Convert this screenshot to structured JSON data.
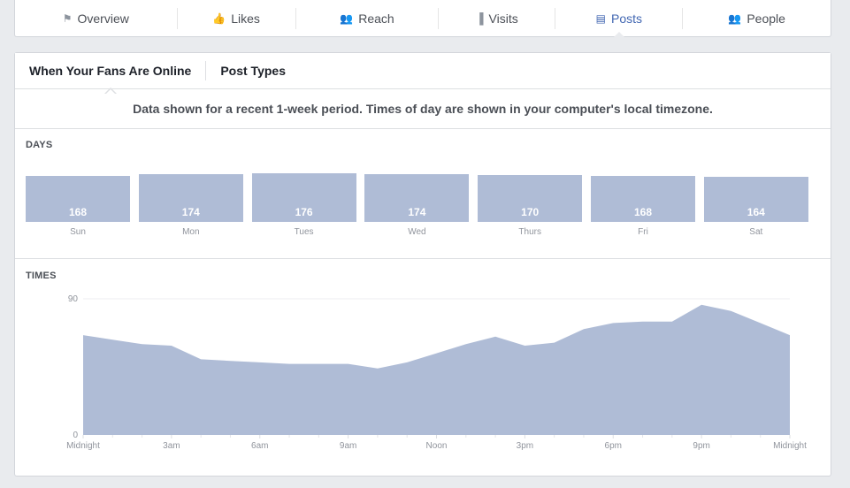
{
  "nav": {
    "tabs": [
      {
        "label": "Overview",
        "icon": "flag-icon",
        "glyph": "⚑"
      },
      {
        "label": "Likes",
        "icon": "thumbs-up-icon",
        "glyph": "👍"
      },
      {
        "label": "Reach",
        "icon": "reach-icon",
        "glyph": "👥"
      },
      {
        "label": "Visits",
        "icon": "bar-chart-icon",
        "glyph": "▐"
      },
      {
        "label": "Posts",
        "icon": "posts-icon",
        "glyph": "▤"
      },
      {
        "label": "People",
        "icon": "people-icon",
        "glyph": "👥"
      }
    ],
    "active": "Posts"
  },
  "subtabs": {
    "fans_online": "When Your Fans Are Online",
    "post_types": "Post Types"
  },
  "notice": "Data shown for a recent 1-week period. Times of day are shown in your computer's local timezone.",
  "days_label": "DAYS",
  "times_label": "TIMES",
  "colors": {
    "accent": "#4267b2",
    "bar": "#afbcd6",
    "text": "#4b4f56"
  },
  "chart_data": [
    {
      "type": "bar",
      "categories": [
        "Sun",
        "Mon",
        "Tues",
        "Wed",
        "Thurs",
        "Fri",
        "Sat"
      ],
      "values": [
        168,
        174,
        176,
        174,
        170,
        168,
        164
      ]
    },
    {
      "type": "area",
      "x": [
        "Midnight",
        "1am",
        "2am",
        "3am",
        "4am",
        "5am",
        "6am",
        "7am",
        "8am",
        "9am",
        "10am",
        "11am",
        "Noon",
        "1pm",
        "2pm",
        "3pm",
        "4pm",
        "5pm",
        "6pm",
        "7pm",
        "8pm",
        "9pm",
        "10pm",
        "11pm",
        "Midnight"
      ],
      "values": [
        66,
        63,
        60,
        59,
        50,
        49,
        48,
        47,
        47,
        47,
        44,
        48,
        54,
        60,
        65,
        59,
        61,
        70,
        74,
        75,
        75,
        86,
        82,
        74,
        66
      ],
      "tick_labels": [
        "Midnight",
        "3am",
        "6am",
        "9am",
        "Noon",
        "3pm",
        "6pm",
        "9pm",
        "Midnight"
      ],
      "ylim": [
        0,
        90
      ],
      "yticks": [
        "0",
        "90"
      ]
    }
  ]
}
